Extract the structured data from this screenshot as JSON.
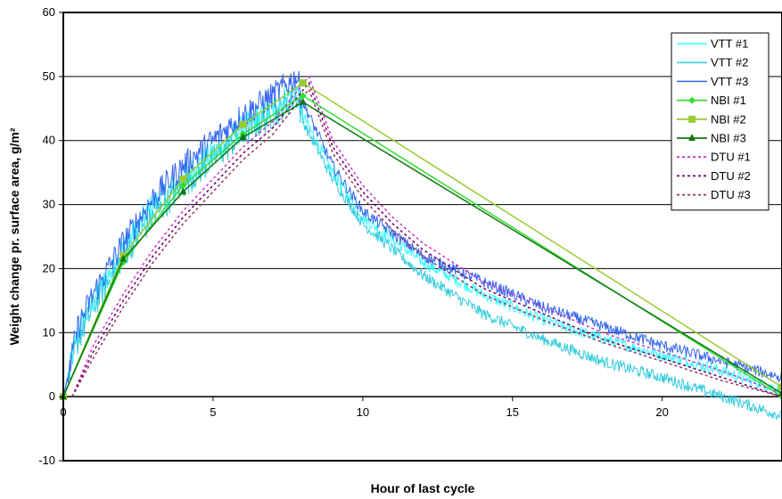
{
  "chart_data": {
    "type": "line",
    "xlabel": "Hour of last cycle",
    "ylabel": "Weight change pr. surface area, g/m²",
    "xlim": [
      0,
      24
    ],
    "ylim": [
      -10,
      60
    ],
    "x_ticks": [
      "0",
      "5",
      "10",
      "15",
      "20"
    ],
    "y_ticks": [
      "-10",
      "0",
      "10",
      "20",
      "30",
      "40",
      "50",
      "60"
    ],
    "grid": "horizontal",
    "legend_position": "top-right",
    "series": [
      {
        "name": "VTT #1",
        "color": "#33ffff",
        "style": "noisy",
        "x": [
          0,
          0.5,
          1,
          2,
          3,
          4,
          5,
          6,
          7,
          7.8,
          8,
          9,
          10,
          12,
          14,
          16,
          18,
          20,
          22,
          24
        ],
        "y": [
          0,
          10,
          15,
          23,
          30,
          34,
          38,
          42,
          45,
          48,
          44,
          35,
          28,
          21,
          16,
          12,
          9,
          6.5,
          4,
          1
        ]
      },
      {
        "name": "VTT #2",
        "color": "#33ccdd",
        "style": "noisy",
        "x": [
          0,
          0.5,
          1,
          2,
          3,
          4,
          5,
          6,
          7,
          7.8,
          8,
          9,
          10,
          12,
          14,
          16,
          18,
          20,
          22,
          24
        ],
        "y": [
          0,
          9,
          14,
          22,
          28,
          33,
          37,
          41,
          44,
          47,
          43,
          34,
          27,
          19,
          13,
          9,
          5.5,
          3,
          0,
          -3
        ]
      },
      {
        "name": "VTT #3",
        "color": "#3366ee",
        "style": "noisy",
        "x": [
          0,
          0.5,
          1,
          2,
          3,
          4,
          5,
          6,
          7,
          7.8,
          8,
          9,
          10,
          12,
          14,
          16,
          18,
          20,
          22,
          24
        ],
        "y": [
          0,
          11,
          16,
          24,
          31,
          36,
          40,
          44,
          47,
          50,
          46,
          36,
          29,
          22,
          18,
          14,
          11,
          8,
          5.5,
          3
        ]
      },
      {
        "name": "NBI #1",
        "color": "#33dd33",
        "marker": "diamond",
        "x": [
          0,
          2,
          4,
          6,
          8,
          24
        ],
        "y": [
          0,
          21,
          33,
          41,
          47,
          0
        ]
      },
      {
        "name": "NBI #2",
        "color": "#99cc33",
        "marker": "square",
        "x": [
          0,
          2,
          4,
          6,
          8,
          24
        ],
        "y": [
          0,
          22,
          34,
          42.5,
          49,
          1.5
        ]
      },
      {
        "name": "NBI #3",
        "color": "#117711",
        "marker": "triangle",
        "x": [
          0,
          2,
          4,
          6,
          8,
          24
        ],
        "y": [
          0,
          21.5,
          32,
          40.5,
          46,
          0.5
        ]
      },
      {
        "name": "DTU #1",
        "color": "#cc33cc",
        "style": "dotted",
        "x": [
          0.3,
          1,
          2,
          3,
          4,
          5,
          6,
          7,
          8.2,
          9,
          10,
          11,
          12,
          14,
          16,
          18,
          20,
          22,
          24
        ],
        "y": [
          0,
          8,
          16,
          23,
          29,
          34,
          39,
          43,
          50,
          40,
          33,
          28,
          24,
          18,
          14,
          10,
          7,
          4,
          0.5
        ]
      },
      {
        "name": "DTU #2",
        "color": "#660066",
        "style": "dotted",
        "x": [
          0.3,
          1,
          2,
          3,
          4,
          5,
          6,
          7,
          8.2,
          9,
          10,
          11,
          12,
          14,
          16,
          18,
          20,
          22,
          24
        ],
        "y": [
          0,
          7,
          15,
          22,
          28,
          33,
          38,
          42,
          49,
          39,
          32,
          27,
          23,
          17,
          13,
          9,
          6,
          3,
          0
        ]
      },
      {
        "name": "DTU #3",
        "color": "#993366",
        "style": "dotted",
        "x": [
          0.3,
          1,
          2,
          3,
          4,
          5,
          6,
          7,
          8.2,
          9,
          10,
          11,
          12,
          14,
          16,
          18,
          20,
          22,
          24
        ],
        "y": [
          0,
          6,
          14,
          21,
          27,
          32,
          37,
          41,
          48,
          38,
          31,
          26,
          22,
          16,
          12,
          8.5,
          5.5,
          2.5,
          0
        ]
      }
    ]
  }
}
